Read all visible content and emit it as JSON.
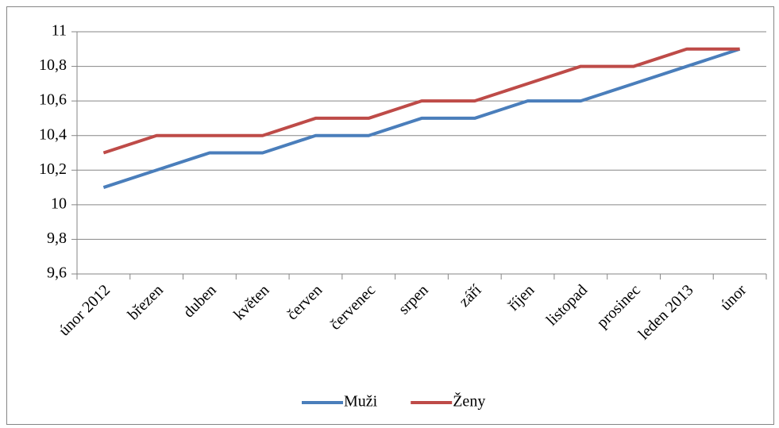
{
  "chart_data": {
    "type": "line",
    "categories": [
      "únor 2012",
      "březen",
      "duben",
      "květen",
      "červen",
      "červenec",
      "srpen",
      "září",
      "říjen",
      "listopad",
      "prosinec",
      "leden 2013",
      "únor"
    ],
    "series": [
      {
        "name": "Muži",
        "color": "#4a7ebb",
        "values": [
          10.1,
          10.2,
          10.3,
          10.3,
          10.4,
          10.4,
          10.5,
          10.5,
          10.6,
          10.6,
          10.7,
          10.8,
          10.9
        ]
      },
      {
        "name": "Ženy",
        "color": "#be4b48",
        "values": [
          10.3,
          10.4,
          10.4,
          10.4,
          10.5,
          10.5,
          10.6,
          10.6,
          10.7,
          10.8,
          10.8,
          10.9,
          10.9
        ]
      }
    ],
    "ylim": [
      9.6,
      11
    ],
    "yticks": [
      {
        "value": 9.6,
        "label": "9,6"
      },
      {
        "value": 9.8,
        "label": "9,8"
      },
      10,
      {
        "value": 10.2,
        "label": "10,2"
      },
      {
        "value": 10.4,
        "label": "10,4"
      },
      {
        "value": 10.6,
        "label": "10,6"
      },
      {
        "value": 10.8,
        "label": "10,8"
      },
      11
    ],
    "grid": true,
    "legend": "bottom"
  }
}
